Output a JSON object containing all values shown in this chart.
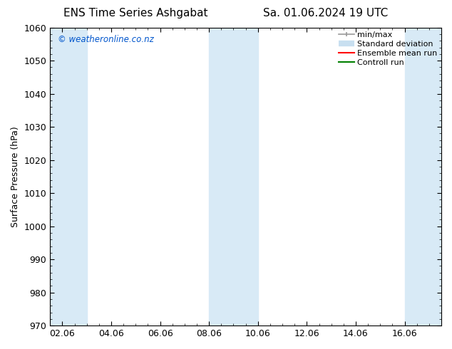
{
  "title_left": "ENS Time Series Ashgabat",
  "title_right": "Sa. 01.06.2024 19 UTC",
  "ylabel": "Surface Pressure (hPa)",
  "ylim": [
    970,
    1060
  ],
  "yticks": [
    970,
    980,
    990,
    1000,
    1010,
    1020,
    1030,
    1040,
    1050,
    1060
  ],
  "xtick_labels": [
    "02.06",
    "04.06",
    "06.06",
    "08.06",
    "10.06",
    "12.06",
    "14.06",
    "16.06"
  ],
  "xtick_positions": [
    0,
    2,
    4,
    6,
    8,
    10,
    12,
    14
  ],
  "xlim": [
    -0.5,
    15.5
  ],
  "shaded_bands": [
    {
      "x_start": -0.5,
      "x_end": 1.0,
      "color": "#d8eaf6"
    },
    {
      "x_start": 6.0,
      "x_end": 8.0,
      "color": "#d8eaf6"
    },
    {
      "x_start": 14.0,
      "x_end": 15.5,
      "color": "#d8eaf6"
    }
  ],
  "watermark_text": "© weatheronline.co.nz",
  "watermark_color": "#0055cc",
  "background_color": "#ffffff",
  "legend_minmax_color": "#999999",
  "legend_std_color": "#c8dff0",
  "legend_ens_color": "#ff0000",
  "legend_ctrl_color": "#008000",
  "font_family": "DejaVu Sans",
  "title_fontsize": 11,
  "label_fontsize": 9,
  "tick_fontsize": 9,
  "legend_fontsize": 8
}
